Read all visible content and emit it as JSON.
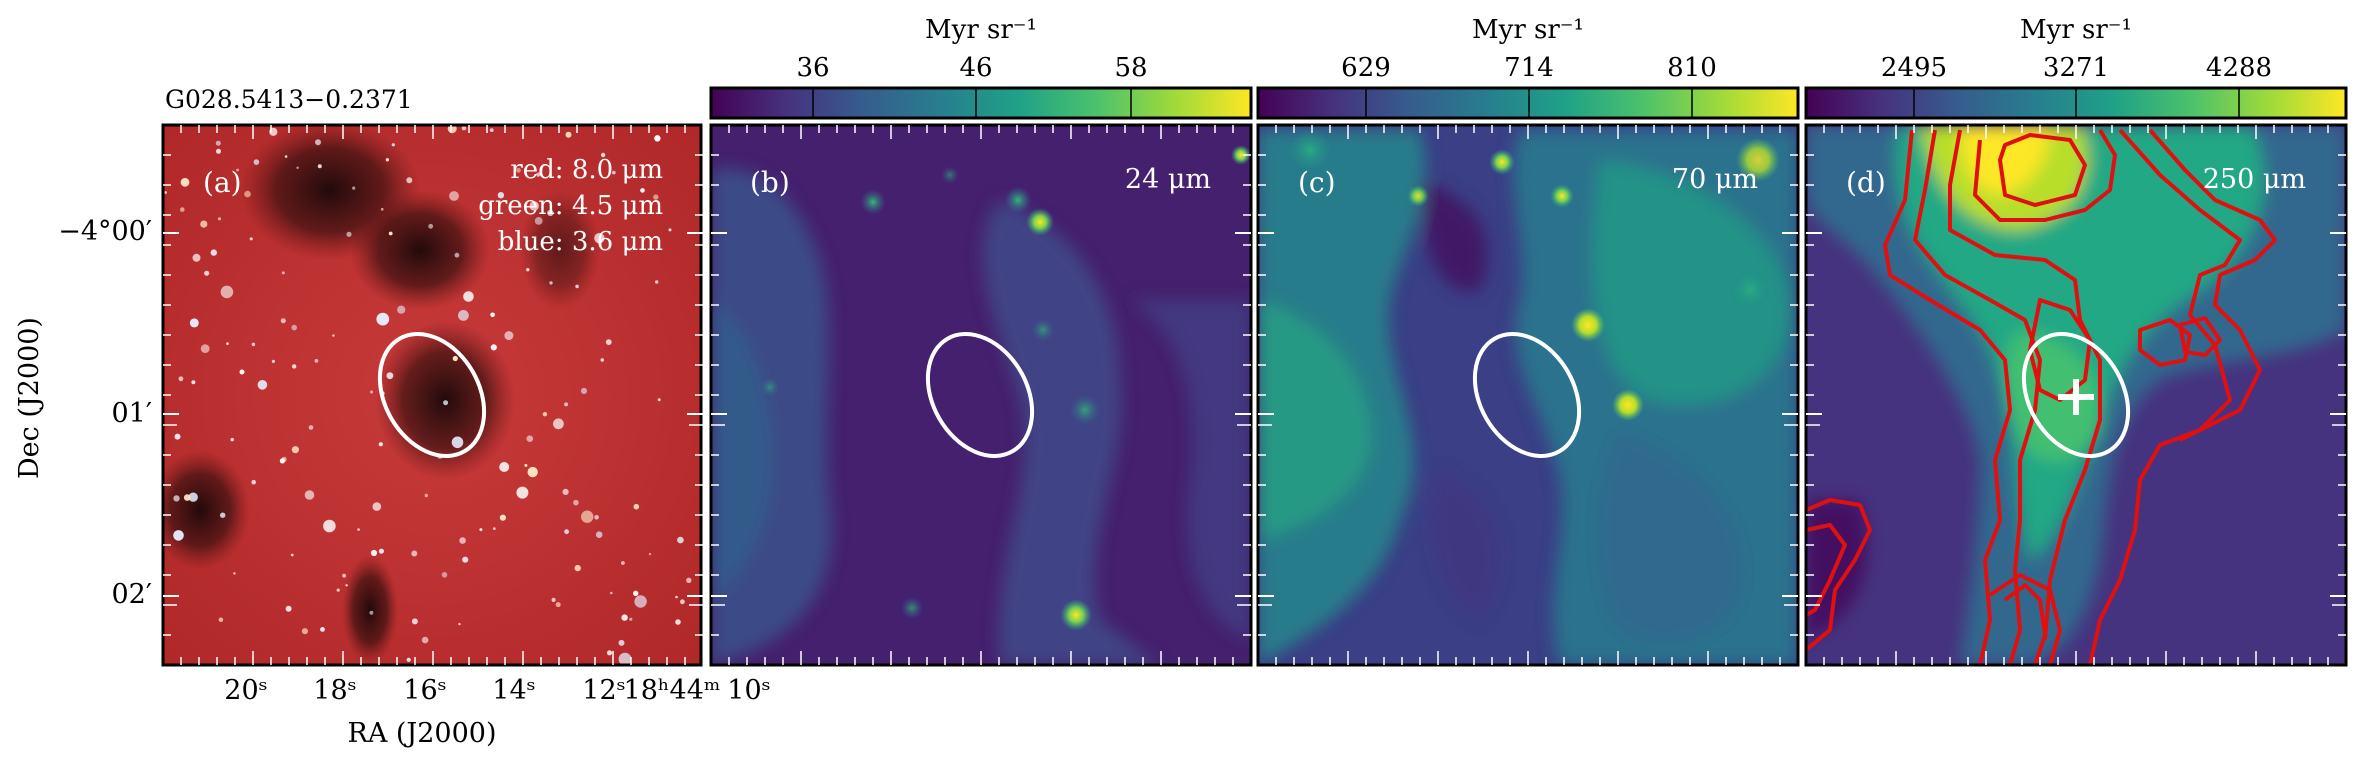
{
  "figure": {
    "source_title": "G028.5413−0.2371",
    "panels": [
      {
        "id": "a",
        "label": "(a)",
        "legend": [
          "red: 8.0 μm",
          "green: 4.5 μm",
          "blue: 3.6 μm"
        ]
      },
      {
        "id": "b",
        "label": "(b)",
        "wavelength": "24 μm",
        "colorbar": {
          "unit": "Myr sr⁻¹",
          "ticks": [
            "36",
            "46",
            "58"
          ]
        }
      },
      {
        "id": "c",
        "label": "(c)",
        "wavelength": "70 μm",
        "colorbar": {
          "unit": "Myr sr⁻¹",
          "ticks": [
            "629",
            "714",
            "810"
          ]
        }
      },
      {
        "id": "d",
        "label": "(d)",
        "wavelength": "250 μm",
        "colorbar": {
          "unit": "Myr sr⁻¹",
          "ticks": [
            "2495",
            "3271",
            "4288"
          ]
        }
      }
    ],
    "axes": {
      "ylabel": "Dec (J2000)",
      "xlabel": "RA (J2000)",
      "y_ticks": [
        "−4°00′",
        "01′",
        "02′"
      ],
      "x_ticks": [
        "20ˢ",
        "18ˢ",
        "16ˢ",
        "14ˢ",
        "12ˢ",
        "18ʰ44ᵐ",
        "10ˢ"
      ]
    },
    "colors": {
      "viridis_dark": "#440154",
      "viridis_mid": "#21918c",
      "viridis_bright": "#fde725",
      "contour": "#e01010",
      "ellipse": "#ffffff"
    }
  }
}
